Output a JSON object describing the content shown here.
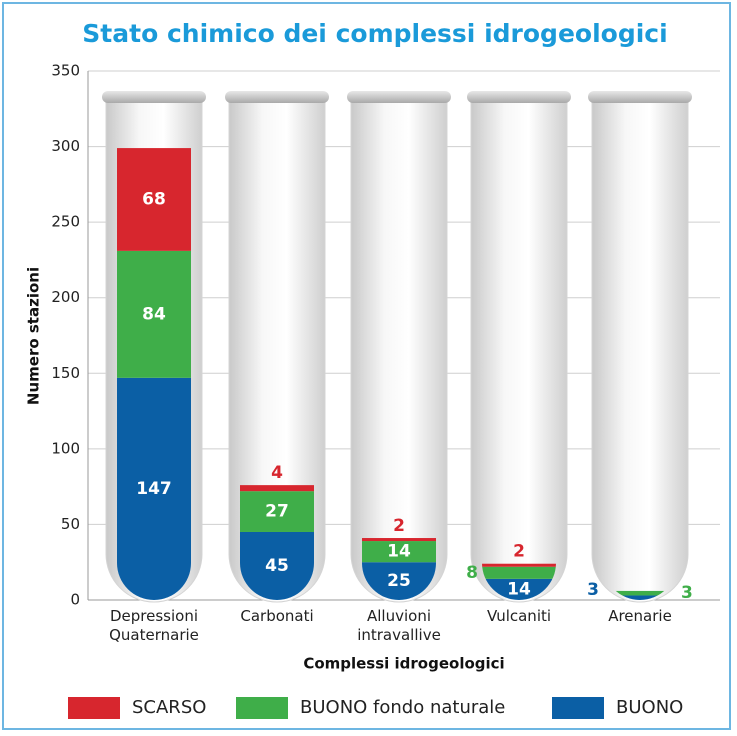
{
  "chart_data": {
    "type": "bar",
    "stacked": true,
    "title": "Stato chimico dei complessi idrogeologici",
    "x_label": "Complessi idrogeologici",
    "y_label": "Numero stazioni",
    "categories": [
      "Depressioni Quaternarie",
      "Carbonati",
      "Alluvioni intravallive",
      "Vulcaniti",
      "Arenarie"
    ],
    "series": [
      {
        "name": "BUONO",
        "color": "#0b5fa5",
        "values": [
          147,
          45,
          25,
          14,
          3
        ]
      },
      {
        "name": "BUONO fondo naturale",
        "color": "#3fae49",
        "values": [
          84,
          27,
          14,
          8,
          3
        ]
      },
      {
        "name": "SCARSO",
        "color": "#d7262e",
        "values": [
          68,
          4,
          2,
          2,
          null
        ]
      }
    ],
    "legend_order": [
      2,
      1,
      0
    ],
    "ylim": [
      0,
      350
    ],
    "yticks": [
      0,
      50,
      100,
      150,
      200,
      250,
      300,
      350
    ],
    "grid": true
  }
}
